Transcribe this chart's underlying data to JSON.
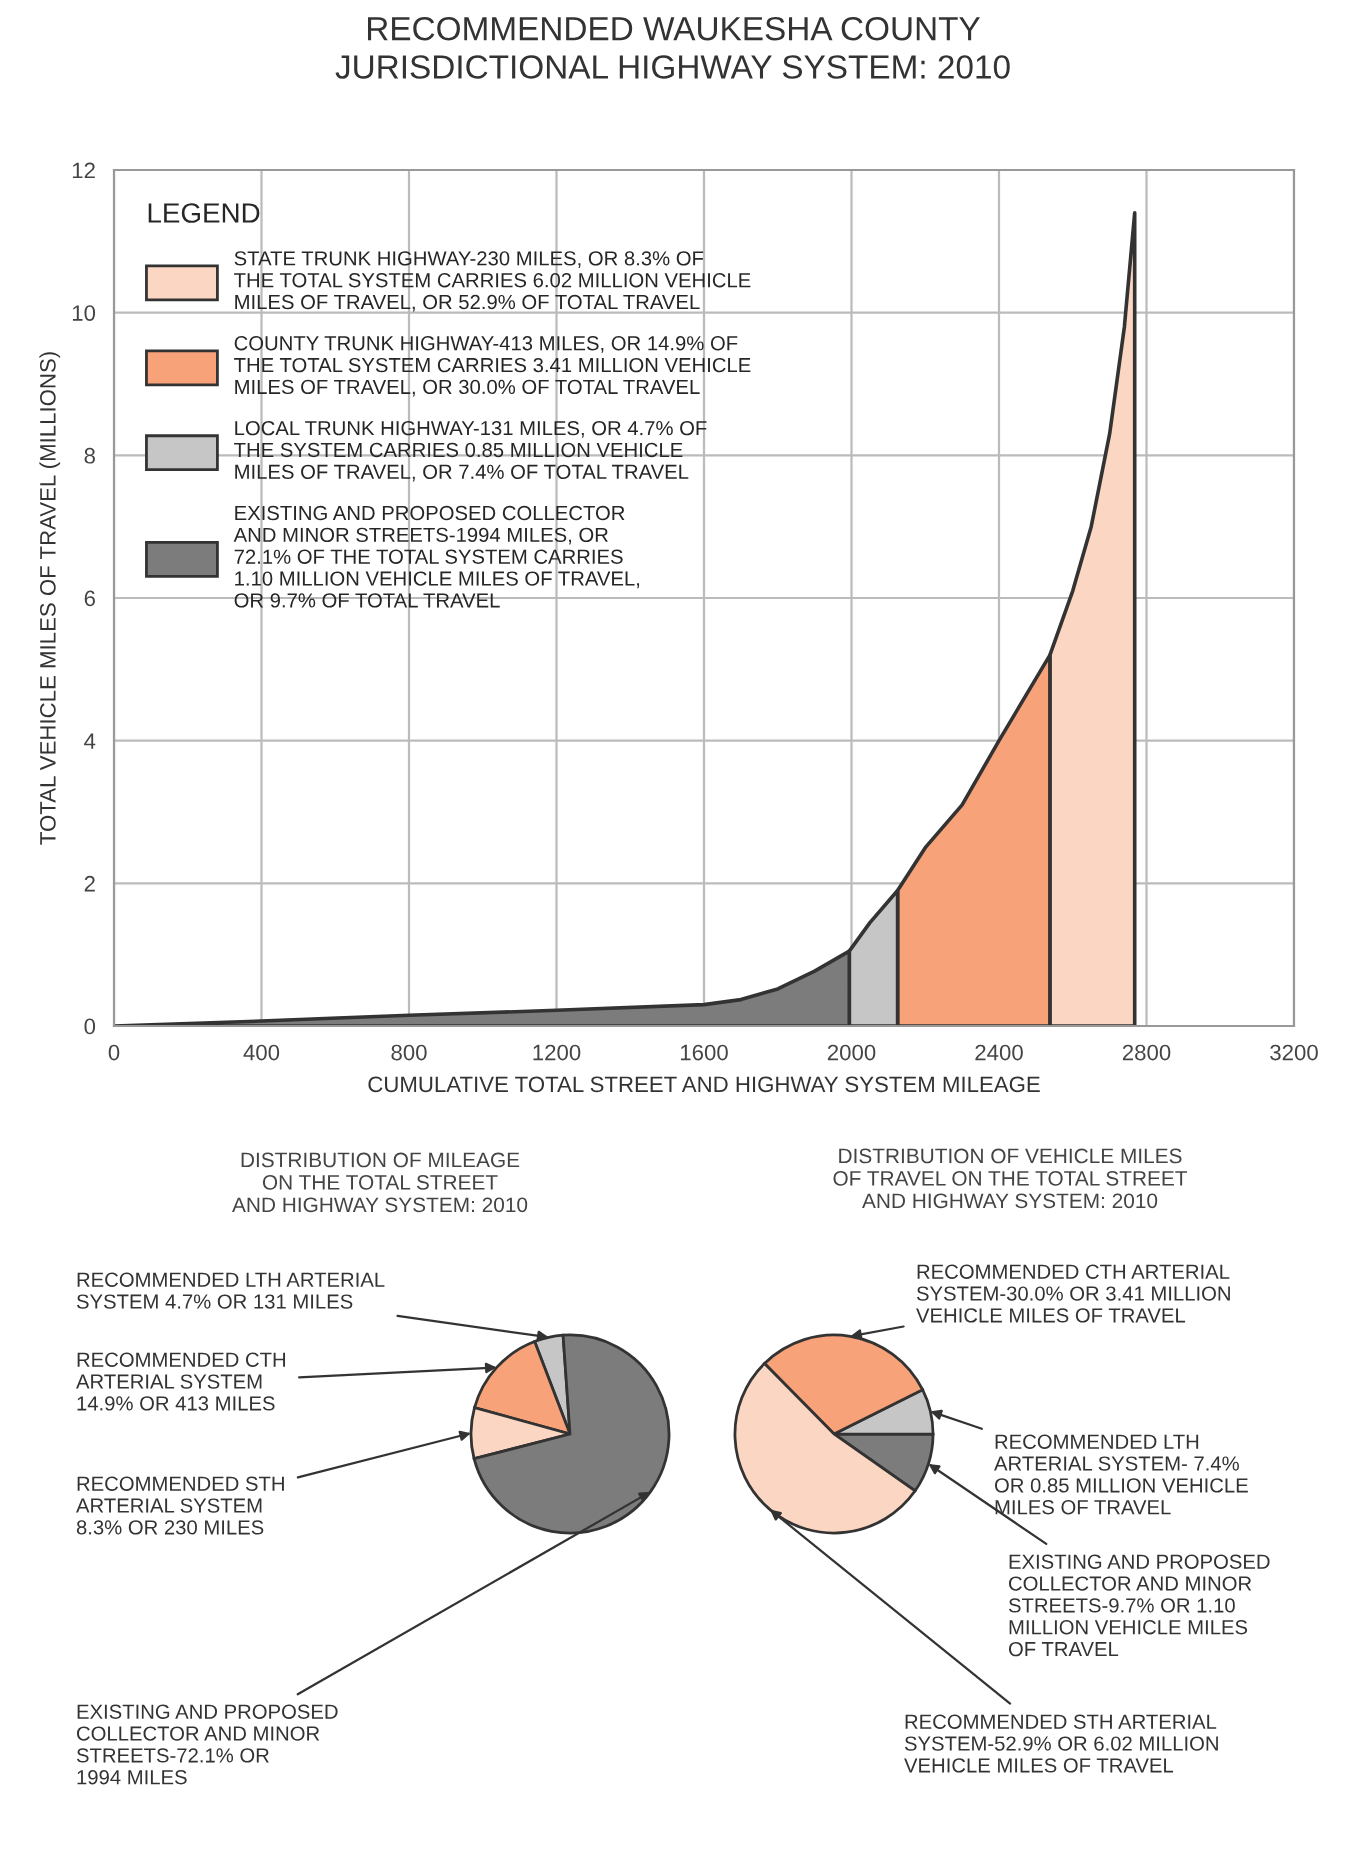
{
  "chart_data": [
    {
      "type": "area",
      "title": "RECOMMENDED WAUKESHA COUNTY\nJURISDICTIONAL HIGHWAY SYSTEM: 2010",
      "xlabel": "CUMULATIVE TOTAL STREET AND HIGHWAY SYSTEM MILEAGE",
      "ylabel": "TOTAL VEHICLE MILES OF TRAVEL (MILLIONS)",
      "legend_title": "LEGEND",
      "legend": "top left",
      "grid": true,
      "xlim": [
        0,
        3200
      ],
      "xticks": [
        0,
        400,
        800,
        1200,
        1600,
        2000,
        2400,
        2800,
        3200
      ],
      "ylim": [
        0,
        12
      ],
      "yticks": [
        0,
        2,
        4,
        6,
        8,
        10,
        12
      ],
      "series": [
        {
          "name": "STATE TRUNK HIGHWAY-230 MILES, OR 8.3% OF\nTHE TOTAL SYSTEM CARRIES 6.02 MILLION VEHICLE\nMILES OF TRAVEL, OR 52.9% OF TOTAL TRAVEL",
          "color": "#fbd6c2",
          "x": [
            2538,
            2600,
            2650,
            2700,
            2740,
            2768
          ],
          "values": [
            5.2,
            6.1,
            7.0,
            8.3,
            9.8,
            11.4
          ]
        },
        {
          "name": "COUNTY TRUNK HIGHWAY-413 MILES, OR 14.9% OF\nTHE TOTAL SYSTEM CARRIES 3.41 MILLION VEHICLE\nMILES OF TRAVEL, OR 30.0% OF TOTAL TRAVEL",
          "color": "#f8a27a",
          "x": [
            2125,
            2200,
            2300,
            2400,
            2538
          ],
          "values": [
            1.9,
            2.5,
            3.1,
            4.0,
            5.2
          ]
        },
        {
          "name": "LOCAL TRUNK HIGHWAY-131 MILES, OR 4.7% OF\nTHE SYSTEM CARRIES 0.85 MILLION VEHICLE\nMILES OF TRAVEL, OR 7.4% OF TOTAL TRAVEL",
          "color": "#c6c6c6",
          "x": [
            1994,
            2050,
            2125
          ],
          "values": [
            1.05,
            1.45,
            1.9
          ]
        },
        {
          "name": "EXISTING AND PROPOSED COLLECTOR\nAND MINOR STREETS-1994 MILES, OR\n72.1% OF THE TOTAL SYSTEM CARRIES\n1.10 MILLION VEHICLE MILES OF TRAVEL,\nOR 9.7% OF TOTAL TRAVEL",
          "color": "#7c7c7c",
          "x": [
            0,
            400,
            800,
            1200,
            1600,
            1700,
            1800,
            1900,
            1994
          ],
          "values": [
            0,
            0.07,
            0.15,
            0.22,
            0.3,
            0.37,
            0.52,
            0.77,
            1.05
          ]
        }
      ]
    },
    {
      "type": "pie",
      "title": "DISTRIBUTION OF MILEAGE\nON THE TOTAL STREET\nAND HIGHWAY SYSTEM: 2010",
      "categories": [
        "RECOMMENDED LTH ARTERIAL\nSYSTEM 4.7% OR 131 MILES",
        "RECOMMENDED CTH\nARTERIAL SYSTEM\n14.9% OR 413 MILES",
        "RECOMMENDED STH\nARTERIAL SYSTEM\n8.3% OR 230 MILES",
        "EXISTING AND PROPOSED\nCOLLECTOR AND MINOR\nSTREETS-72.1% OR\n1994 MILES"
      ],
      "values": [
        4.7,
        14.9,
        8.3,
        72.1
      ],
      "colors": [
        "#c6c6c6",
        "#f8a27a",
        "#fbd6c2",
        "#7c7c7c"
      ]
    },
    {
      "type": "pie",
      "title": "DISTRIBUTION OF VEHICLE MILES\nOF TRAVEL ON THE TOTAL STREET\nAND HIGHWAY SYSTEM: 2010",
      "categories": [
        "EXISTING AND PROPOSED\nCOLLECTOR AND MINOR\nSTREETS-9.7% OR 1.10\nMILLION VEHICLE MILES\nOF TRAVEL",
        "RECOMMENDED LTH\nARTERIAL SYSTEM- 7.4%\nOR 0.85 MILLION VEHICLE\nMILES OF TRAVEL",
        "RECOMMENDED CTH ARTERIAL\nSYSTEM-30.0% OR 3.41 MILLION\nVEHICLE MILES OF TRAVEL",
        "RECOMMENDED STH ARTERIAL\nSYSTEM-52.9% OR 6.02 MILLION\nVEHICLE MILES OF TRAVEL"
      ],
      "values": [
        9.7,
        7.4,
        30.0,
        52.9
      ],
      "colors": [
        "#7c7c7c",
        "#c6c6c6",
        "#f8a27a",
        "#fbd6c2"
      ]
    }
  ]
}
